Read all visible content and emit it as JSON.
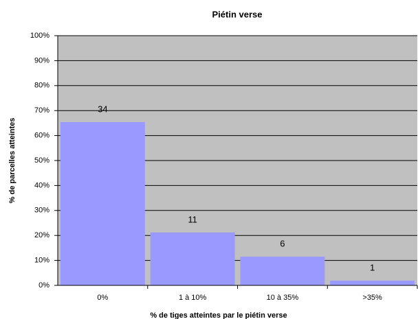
{
  "chart_data": {
    "type": "bar",
    "title": "Piétin verse",
    "x_label": "% de tiges atteintes par le piétin verse",
    "y_label": "% de parcelles atteintes",
    "categories": [
      "0%",
      "1 à 10%",
      "10 à 35%",
      ">35%"
    ],
    "values": [
      65.4,
      21.2,
      11.5,
      1.9
    ],
    "counts": [
      34,
      11,
      6,
      1
    ],
    "color": "#9999ff",
    "background": "#c0c0c0",
    "ylim": [
      0,
      100
    ],
    "yticks": [
      {
        "value": 0,
        "label": "0%"
      },
      {
        "value": 10,
        "label": "10%"
      },
      {
        "value": 20,
        "label": "20%"
      },
      {
        "value": 30,
        "label": "30%"
      },
      {
        "value": 40,
        "label": "40%"
      },
      {
        "value": 50,
        "label": "50%"
      },
      {
        "value": 60,
        "label": "60%"
      },
      {
        "value": 70,
        "label": "70%"
      },
      {
        "value": 80,
        "label": "80%"
      },
      {
        "value": 90,
        "label": "90%"
      },
      {
        "value": 100,
        "label": "100%"
      }
    ],
    "grid": true
  }
}
